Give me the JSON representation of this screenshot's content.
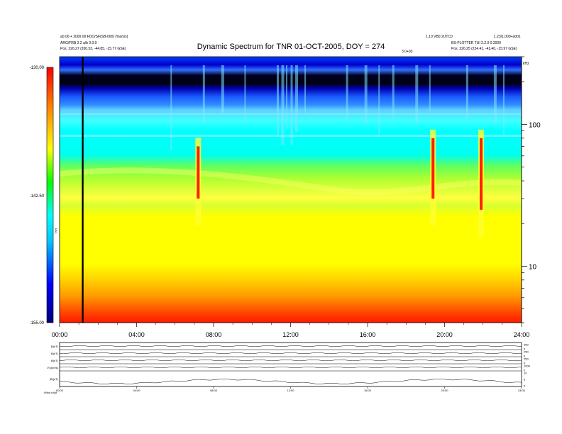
{
  "header": {
    "title": "Dynamic Spectrum for TNR 01-OCT-2005, DOY = 274",
    "left_line1": "a0.00 + 2000.00 FDO/SF(SB-000) (%s/s/s)",
    "left_line2": "ARG/FRB 2.2 a/b 0.0.0",
    "left_line3": "Pos: 226.27 (200.53, -44.85, -15.77 GSE)",
    "right_line1": "1.10 VB0 2UTC0",
    "right_line2": "L.23/1.000+a001",
    "right_line3": "BS-PLOTTER TUI 2.2.0 0.2000",
    "right_line4": "Pos: 226.25 (224.41, -41.40, -15.97 GSE)",
    "center_small": "3.0+03",
    "right_unit": "kHz"
  },
  "colorbar": {
    "top_label": "-130.00",
    "mid_label": "-142.50",
    "bottom_label": "-155.00",
    "axis_label": "TNR"
  },
  "chart_data": {
    "type": "heatmap",
    "title": "Dynamic Spectrum for TNR 01-OCT-2005, DOY = 274",
    "xlabel": "",
    "ylabel": "kHz",
    "x_ticks": [
      "00:00",
      "04:00",
      "08:00",
      "12:00",
      "16:00",
      "20:00",
      "24:00"
    ],
    "xlim_hours": [
      0,
      24
    ],
    "y_scale": "log",
    "ylim": [
      4,
      300
    ],
    "y_ticks": [
      {
        "value": 10,
        "label": "10"
      },
      {
        "value": 100,
        "label": "100"
      }
    ],
    "z_range": [
      -155,
      -130
    ],
    "colormap": [
      "#8b0000",
      "#ff0000",
      "#ff8c00",
      "#ffff00",
      "#00ff00",
      "#00ffff",
      "#0064ff",
      "#0000c0",
      "#000010"
    ],
    "features": [
      {
        "name": "data gap line",
        "time_hours": 1.2
      },
      {
        "name": "intense emission",
        "time_hours": 7.2,
        "freq_khz": [
          30,
          70
        ]
      },
      {
        "name": "intense emission",
        "time_hours": 19.4,
        "freq_khz": [
          30,
          80
        ]
      },
      {
        "name": "intense emission",
        "time_hours": 21.9,
        "freq_khz": [
          25,
          80
        ]
      }
    ]
  },
  "panels": {
    "labels": [
      "B(nT)",
      "B(nT)",
      "B(nT)",
      "Vi (km/s)",
      "|B|(nT)"
    ],
    "right_ticks": [
      [
        "250",
        "0"
      ],
      [
        "250",
        "0"
      ],
      [
        "250",
        "0"
      ],
      [
        "1000",
        "0"
      ],
      [
        "10",
        "5",
        "0"
      ]
    ],
    "x_ticks": [
      "00:00",
      "04:00",
      "08:00",
      "12:00",
      "16:00",
      "20:00",
      "24:00"
    ],
    "footer": "Wind    eXpl"
  }
}
